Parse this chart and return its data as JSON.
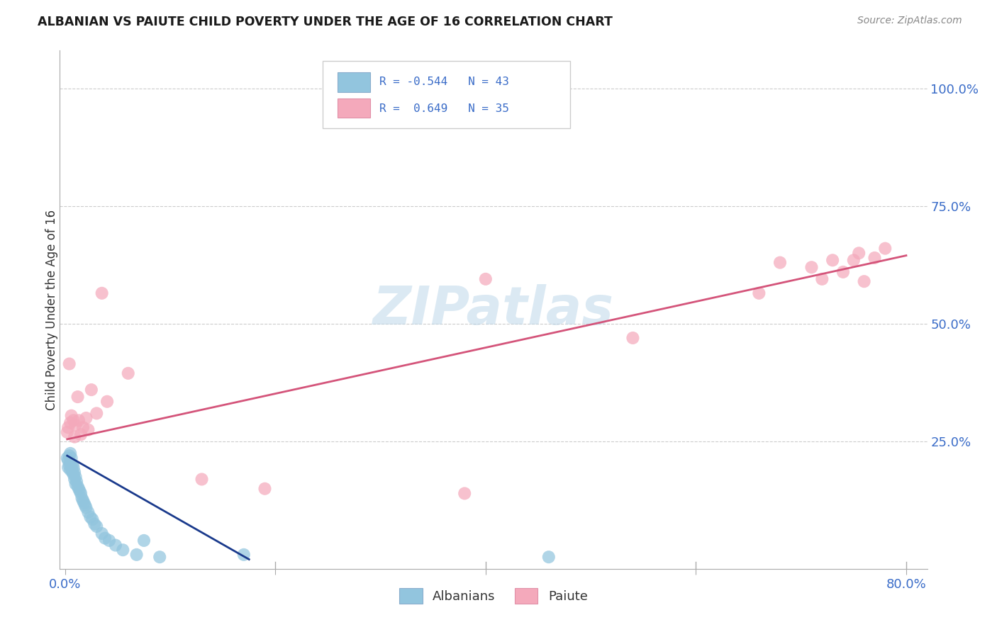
{
  "title": "ALBANIAN VS PAIUTE CHILD POVERTY UNDER THE AGE OF 16 CORRELATION CHART",
  "source": "Source: ZipAtlas.com",
  "ylabel": "Child Poverty Under the Age of 16",
  "xlim": [
    -0.005,
    0.82
  ],
  "ylim": [
    -0.02,
    1.08
  ],
  "ytick_vals": [
    0.0,
    0.25,
    0.5,
    0.75,
    1.0
  ],
  "ytick_labels": [
    "",
    "25.0%",
    "50.0%",
    "75.0%",
    "100.0%"
  ],
  "xtick_vals": [
    0.0,
    0.2,
    0.4,
    0.6,
    0.8
  ],
  "xtick_labels": [
    "0.0%",
    "",
    "",
    "",
    "80.0%"
  ],
  "albanian_color": "#92C5DE",
  "paiute_color": "#F4A9BB",
  "albanian_line_color": "#1A3A8C",
  "paiute_line_color": "#D4547A",
  "watermark_color": "#B8D4E8",
  "background_color": "#FFFFFF",
  "grid_color": "#CCCCCC",
  "albanian_x": [
    0.002,
    0.003,
    0.003,
    0.004,
    0.004,
    0.005,
    0.005,
    0.005,
    0.006,
    0.006,
    0.007,
    0.007,
    0.008,
    0.008,
    0.009,
    0.009,
    0.01,
    0.01,
    0.011,
    0.012,
    0.013,
    0.014,
    0.015,
    0.016,
    0.017,
    0.018,
    0.019,
    0.02,
    0.022,
    0.024,
    0.026,
    0.028,
    0.03,
    0.035,
    0.038,
    0.042,
    0.048,
    0.055,
    0.068,
    0.075,
    0.09,
    0.17,
    0.46
  ],
  "albanian_y": [
    0.215,
    0.21,
    0.195,
    0.22,
    0.2,
    0.225,
    0.205,
    0.19,
    0.215,
    0.195,
    0.2,
    0.185,
    0.195,
    0.18,
    0.185,
    0.17,
    0.175,
    0.16,
    0.165,
    0.155,
    0.15,
    0.145,
    0.14,
    0.13,
    0.125,
    0.12,
    0.115,
    0.11,
    0.1,
    0.09,
    0.085,
    0.075,
    0.07,
    0.055,
    0.045,
    0.04,
    0.03,
    0.02,
    0.01,
    0.04,
    0.005,
    0.01,
    0.005
  ],
  "paiute_x": [
    0.002,
    0.003,
    0.004,
    0.005,
    0.006,
    0.008,
    0.009,
    0.01,
    0.012,
    0.013,
    0.015,
    0.017,
    0.02,
    0.022,
    0.025,
    0.03,
    0.035,
    0.04,
    0.06,
    0.13,
    0.19,
    0.38,
    0.4,
    0.54,
    0.66,
    0.68,
    0.71,
    0.72,
    0.73,
    0.74,
    0.75,
    0.755,
    0.76,
    0.77,
    0.78
  ],
  "paiute_y": [
    0.27,
    0.28,
    0.415,
    0.29,
    0.305,
    0.295,
    0.26,
    0.285,
    0.345,
    0.295,
    0.265,
    0.28,
    0.3,
    0.275,
    0.36,
    0.31,
    0.565,
    0.335,
    0.395,
    0.17,
    0.15,
    0.14,
    0.595,
    0.47,
    0.565,
    0.63,
    0.62,
    0.595,
    0.635,
    0.61,
    0.635,
    0.65,
    0.59,
    0.64,
    0.66
  ],
  "alb_line_x": [
    0.002,
    0.175
  ],
  "alb_line_y": [
    0.22,
    0.0
  ],
  "pai_line_x": [
    0.002,
    0.8
  ],
  "pai_line_y": [
    0.255,
    0.645
  ]
}
